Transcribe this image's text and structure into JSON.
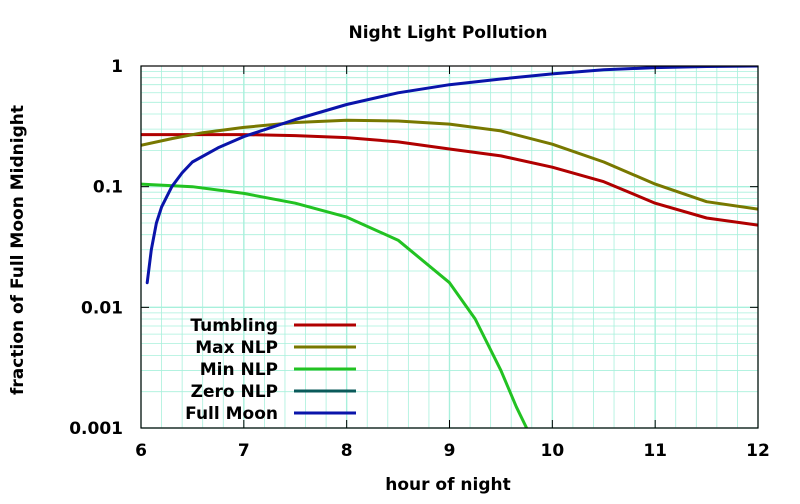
{
  "chart_data": {
    "type": "line",
    "title": "Night Light Pollution",
    "xlabel": "hour of night",
    "ylabel": "fraction of Full Moon Midnight",
    "xlim": [
      6,
      12
    ],
    "ylim": [
      0.001,
      1
    ],
    "yscale": "log",
    "grid": true,
    "x_ticks": [
      {
        "value": 6,
        "label": "6"
      },
      {
        "value": 7,
        "label": "7"
      },
      {
        "value": 8,
        "label": "8"
      },
      {
        "value": 9,
        "label": "9"
      },
      {
        "value": 10,
        "label": "10"
      },
      {
        "value": 11,
        "label": "11"
      },
      {
        "value": 12,
        "label": "12"
      }
    ],
    "y_ticks": [
      {
        "value": 0.001,
        "label": "0.001"
      },
      {
        "value": 0.01,
        "label": "0.01"
      },
      {
        "value": 0.1,
        "label": "0.1"
      },
      {
        "value": 1,
        "label": "1"
      }
    ],
    "legend_position": "bottom-left",
    "colors": {
      "grid": "#a8f0dc",
      "frame": "#000000"
    },
    "series": [
      {
        "name": "Tumbling",
        "color": "#b00000",
        "x": [
          6.0,
          6.5,
          7.0,
          7.5,
          8.0,
          8.5,
          9.0,
          9.5,
          10.0,
          10.5,
          11.0,
          11.5,
          12.0
        ],
        "y": [
          0.27,
          0.27,
          0.27,
          0.265,
          0.255,
          0.235,
          0.205,
          0.18,
          0.145,
          0.11,
          0.073,
          0.055,
          0.048
        ]
      },
      {
        "name": "Max NLP",
        "color": "#787800",
        "x": [
          6.0,
          6.3,
          6.6,
          7.0,
          7.5,
          8.0,
          8.5,
          9.0,
          9.5,
          10.0,
          10.5,
          11.0,
          11.5,
          12.0
        ],
        "y": [
          0.22,
          0.25,
          0.28,
          0.31,
          0.34,
          0.355,
          0.35,
          0.33,
          0.29,
          0.225,
          0.16,
          0.105,
          0.075,
          0.065
        ]
      },
      {
        "name": "Min NLP",
        "color": "#22c222",
        "x": [
          6.0,
          6.5,
          7.0,
          7.5,
          8.0,
          8.5,
          9.0,
          9.25,
          9.5,
          9.65,
          9.75
        ],
        "y": [
          0.105,
          0.1,
          0.088,
          0.073,
          0.056,
          0.036,
          0.016,
          0.008,
          0.003,
          0.0015,
          0.001
        ]
      },
      {
        "name": "Zero NLP",
        "color": "#0a5a5a",
        "x": [],
        "y": []
      },
      {
        "name": "Full Moon",
        "color": "#0a14aa",
        "x": [
          6.06,
          6.1,
          6.15,
          6.2,
          6.3,
          6.4,
          6.5,
          6.75,
          7.0,
          7.5,
          8.0,
          8.5,
          9.0,
          9.5,
          10.0,
          10.5,
          11.0,
          11.5,
          12.0
        ],
        "y": [
          0.016,
          0.03,
          0.05,
          0.068,
          0.1,
          0.13,
          0.16,
          0.21,
          0.26,
          0.36,
          0.48,
          0.6,
          0.7,
          0.78,
          0.86,
          0.93,
          0.97,
          0.99,
          1.0
        ]
      }
    ]
  }
}
